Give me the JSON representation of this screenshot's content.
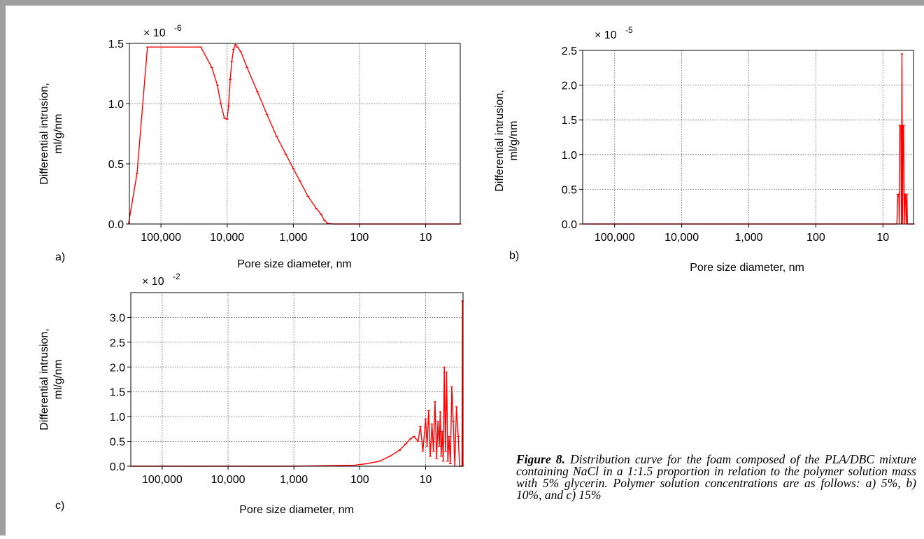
{
  "figure": {
    "caption_label": "Figure 8.",
    "caption_text": "Distribution curve for the foam composed of the PLA/DBC mixture containing NaCl in a 1:1.5 proportion in relation to the polymer solution mass with 5% glycerin. Polymer solution concentrations are as follows: a) 5%, b) 10%, and c) 15%"
  },
  "colors": {
    "series": "#ff0000",
    "grid": "#555555",
    "axis": "#000000"
  },
  "chart_data": [
    {
      "type": "line",
      "panel_label": "a)",
      "multiplier_base": "× 10",
      "multiplier_exp": "-6",
      "xlabel": "Pore size diameter, nm",
      "ylabel": [
        "Differential intrusion,",
        "ml/g/nm"
      ],
      "x_scale": "log-reversed",
      "xlim": [
        300000,
        3
      ],
      "ylim": [
        0,
        1.5
      ],
      "x_ticks": [
        {
          "v": 100000,
          "label": "100,000"
        },
        {
          "v": 10000,
          "label": "10,000"
        },
        {
          "v": 1000,
          "label": "1,000"
        },
        {
          "v": 100,
          "label": "100"
        },
        {
          "v": 10,
          "label": "10"
        }
      ],
      "y_ticks": [
        {
          "v": 0,
          "label": "0.0"
        },
        {
          "v": 0.5,
          "label": "0.5"
        },
        {
          "v": 1.0,
          "label": "1.0"
        },
        {
          "v": 1.5,
          "label": "1.5"
        }
      ],
      "grid": true,
      "series": [
        {
          "x": [
            310000,
            230000,
            160000,
            100000,
            60000,
            40000,
            25000,
            17000,
            14000,
            12500,
            11000,
            10000,
            9500,
            9000,
            8500,
            8000,
            7500,
            7000,
            6200,
            5000,
            3500,
            2500,
            1800,
            1300,
            1000,
            800,
            600,
            450,
            380,
            340,
            300,
            250,
            200,
            100,
            30,
            10,
            3
          ],
          "y": [
            0,
            0.42,
            1.47,
            1.47,
            1.47,
            1.47,
            1.47,
            1.3,
            1.15,
            1.0,
            0.88,
            0.87,
            0.98,
            1.2,
            1.35,
            1.45,
            1.49,
            1.47,
            1.43,
            1.3,
            1.1,
            0.91,
            0.73,
            0.58,
            0.46,
            0.36,
            0.23,
            0.13,
            0.08,
            0.03,
            0.005,
            0,
            0,
            0,
            0,
            0,
            0
          ]
        }
      ]
    },
    {
      "type": "line",
      "panel_label": "b)",
      "multiplier_base": "× 10",
      "multiplier_exp": "-5",
      "xlabel": "Pore size diameter, nm",
      "ylabel": [
        "Differential intrusion,",
        "ml/g/nm"
      ],
      "x_scale": "log-reversed",
      "xlim": [
        300000,
        3.5
      ],
      "ylim": [
        0,
        2.5
      ],
      "x_ticks": [
        {
          "v": 100000,
          "label": "100,000"
        },
        {
          "v": 10000,
          "label": "10,000"
        },
        {
          "v": 1000,
          "label": "1,000"
        },
        {
          "v": 100,
          "label": "100"
        },
        {
          "v": 10,
          "label": "10"
        }
      ],
      "y_ticks": [
        {
          "v": 0,
          "label": "0.0"
        },
        {
          "v": 0.5,
          "label": "0.5"
        },
        {
          "v": 1.0,
          "label": "1.0"
        },
        {
          "v": 1.5,
          "label": "1.5"
        },
        {
          "v": 2.0,
          "label": "2.0"
        },
        {
          "v": 2.5,
          "label": "2.5"
        }
      ],
      "grid": true,
      "series": [
        {
          "x": [
            300000,
            10000,
            1000,
            100,
            8,
            6.2,
            6.0,
            5.8,
            5.7,
            5.6,
            5.4,
            5.3,
            5.2,
            5.1,
            5.0,
            4.9,
            4.8,
            4.7,
            4.6,
            4.5,
            4.4,
            4.3,
            4.0,
            3.5
          ],
          "y": [
            0,
            0,
            0,
            0,
            0,
            0,
            0.43,
            0.43,
            0,
            1.42,
            1.42,
            0,
            2.45,
            0,
            1.42,
            1.42,
            0,
            0.43,
            0.43,
            0,
            0.43,
            0,
            0,
            0
          ]
        }
      ]
    },
    {
      "type": "line",
      "panel_label": "c)",
      "multiplier_base": "× 10",
      "multiplier_exp": "-2",
      "xlabel": "Pore size diameter, nm",
      "ylabel": [
        "Differential intrusion,",
        "ml/g/nm"
      ],
      "x_scale": "log-reversed",
      "xlim": [
        300000,
        2.7
      ],
      "ylim": [
        0,
        3.5
      ],
      "x_ticks": [
        {
          "v": 100000,
          "label": "100,000"
        },
        {
          "v": 10000,
          "label": "10,000"
        },
        {
          "v": 1000,
          "label": "1,000"
        },
        {
          "v": 100,
          "label": "100"
        },
        {
          "v": 10,
          "label": "10"
        }
      ],
      "y_ticks": [
        {
          "v": 0,
          "label": "0.0"
        },
        {
          "v": 0.5,
          "label": "0.5"
        },
        {
          "v": 1.0,
          "label": "1.0"
        },
        {
          "v": 1.5,
          "label": "1.5"
        },
        {
          "v": 2.0,
          "label": "2.0"
        },
        {
          "v": 2.5,
          "label": "2.5"
        },
        {
          "v": 3.0,
          "label": "3.0"
        }
      ],
      "grid": true,
      "series": [
        {
          "x": [
            300000,
            10000,
            1000,
            120,
            80,
            50,
            35,
            25,
            20,
            17,
            15,
            13,
            12,
            11,
            10,
            9.5,
            9,
            8.5,
            8,
            7.6,
            7.2,
            6.8,
            6.5,
            6.2,
            6.0,
            5.8,
            5.6,
            5.4,
            5.2,
            5.0,
            4.8,
            4.6,
            4.4,
            4.2,
            4.0,
            3.8,
            3.6,
            3.4,
            3.2,
            3.05,
            3.0,
            2.95,
            2.9,
            2.85,
            2.8,
            2.75,
            2.72
          ],
          "y": [
            0,
            0,
            0,
            0.02,
            0.05,
            0.1,
            0.2,
            0.32,
            0.45,
            0.55,
            0.6,
            0.5,
            0.8,
            0.3,
            0.95,
            0.4,
            1.12,
            0.2,
            0.85,
            0.3,
            1.3,
            0.15,
            0.9,
            0.4,
            1.1,
            0.2,
            0.7,
            0.1,
            2.0,
            0.3,
            1.9,
            0.1,
            0.6,
            0.05,
            1.6,
            0.9,
            0,
            1.2,
            0.6,
            0,
            0,
            0,
            0,
            0,
            0,
            3.33,
            0
          ]
        }
      ]
    }
  ]
}
